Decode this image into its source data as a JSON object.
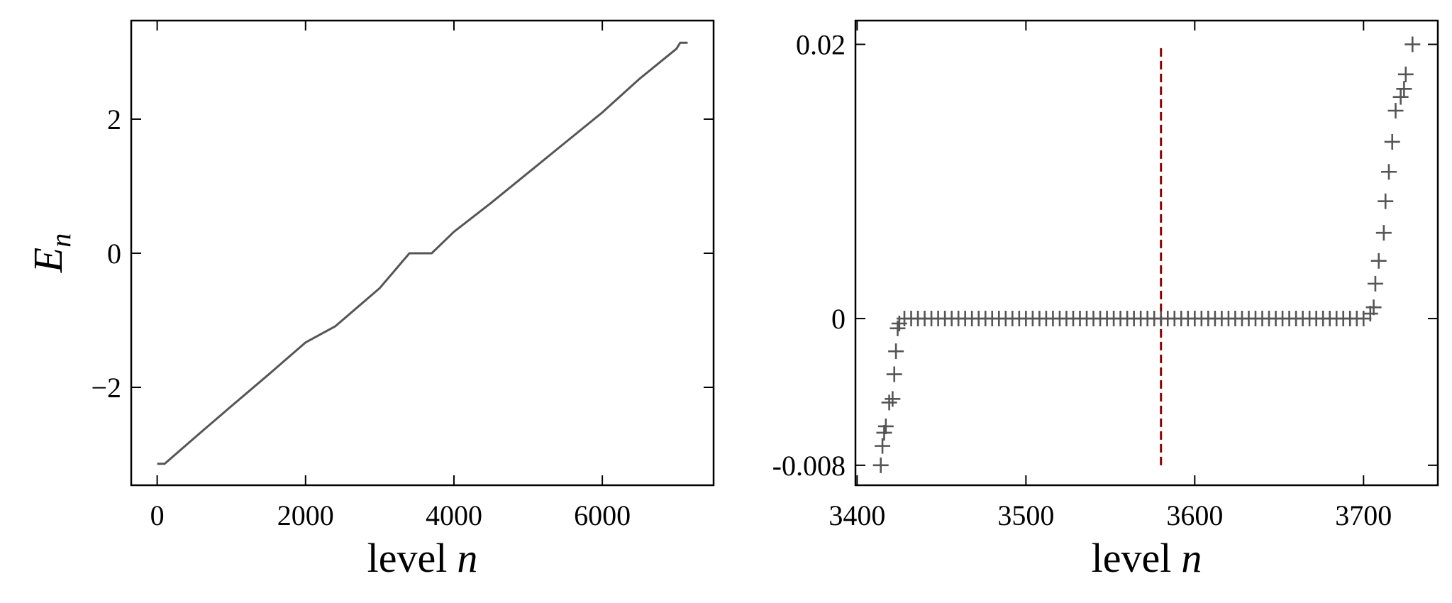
{
  "chart_data": [
    {
      "type": "line",
      "xlabel": "level",
      "xlabel_var": "n",
      "ylabel": "E",
      "ylabel_sub": "n",
      "xlim": [
        -350,
        7500
      ],
      "ylim": [
        -3.46,
        3.47
      ],
      "xticks": [
        0,
        2000,
        4000,
        6000
      ],
      "yticks": [
        {
          "value": -2,
          "label": "−2"
        },
        0,
        2
      ],
      "series": [
        {
          "color": "#555555",
          "x": [
            0,
            100,
            600,
            1000,
            1500,
            2000,
            2400,
            3000,
            3400,
            3700,
            4000,
            4500,
            5000,
            5500,
            6000,
            6500,
            7000,
            7050,
            7150
          ],
          "values": [
            -3.14,
            -3.14,
            -2.66,
            -2.28,
            -1.81,
            -1.33,
            -1.09,
            -0.52,
            0,
            0,
            0.32,
            0.75,
            1.2,
            1.65,
            2.1,
            2.6,
            3.05,
            3.14,
            3.14
          ]
        }
      ]
    },
    {
      "type": "scatter",
      "xlabel": "level",
      "xlabel_var": "n",
      "xlim": [
        3399,
        3744
      ],
      "ylim": [
        -0.0095,
        0.023
      ],
      "yscale": "symlog",
      "linthresh": 0.01,
      "xticks": [
        3400,
        3500,
        3600,
        3700
      ],
      "yticks": [
        -0.008,
        0,
        0.02
      ],
      "series": [
        {
          "color": "#555555",
          "marker": "+",
          "x": [
            3414,
            3415,
            3416,
            3417,
            3419,
            3421,
            3422,
            3423,
            3424,
            3425,
            3428,
            3432,
            3436,
            3440,
            3444,
            3448,
            3452,
            3456,
            3460,
            3464,
            3468,
            3472,
            3476,
            3480,
            3484,
            3488,
            3492,
            3496,
            3500,
            3504,
            3508,
            3512,
            3516,
            3520,
            3524,
            3528,
            3532,
            3536,
            3540,
            3544,
            3548,
            3552,
            3556,
            3560,
            3564,
            3568,
            3572,
            3576,
            3580,
            3584,
            3588,
            3592,
            3596,
            3600,
            3604,
            3608,
            3612,
            3616,
            3620,
            3624,
            3628,
            3632,
            3636,
            3640,
            3644,
            3648,
            3652,
            3656,
            3660,
            3664,
            3668,
            3672,
            3676,
            3680,
            3684,
            3688,
            3692,
            3696,
            3700,
            3704,
            3706,
            3707,
            3709,
            3712,
            3713,
            3715,
            3717,
            3719,
            3722,
            3724,
            3725,
            3729
          ],
          "values": [
            -0.008,
            -0.00666,
            -0.0058,
            -0.0054,
            -0.004,
            -0.0038,
            -0.0025,
            -0.0014,
            -0.0004,
            -0.0002,
            0,
            0,
            0,
            0,
            0,
            0,
            0,
            0,
            0,
            0,
            0,
            0,
            0,
            0,
            0,
            0,
            0,
            0,
            0,
            0,
            0,
            0,
            0,
            0,
            0,
            0,
            0,
            0,
            0,
            0,
            0,
            0,
            0,
            0,
            0,
            0,
            0,
            0,
            0,
            0,
            0,
            0,
            0,
            0,
            0,
            0,
            0,
            0,
            0,
            0,
            0,
            0,
            0,
            0,
            0,
            0,
            0,
            0,
            0,
            0,
            0,
            0,
            0,
            0,
            0,
            0,
            0,
            0,
            0,
            0.0002,
            0.00046,
            0.0015,
            0.0026,
            0.0041,
            0.006,
            0.008,
            0.0103,
            0.013,
            0.0143,
            0.0151,
            0.0166,
            0.02
          ]
        }
      ],
      "vline": {
        "x": 3580,
        "ymin": -0.008,
        "ymax": 0.02,
        "color": "#8b0000"
      }
    }
  ]
}
